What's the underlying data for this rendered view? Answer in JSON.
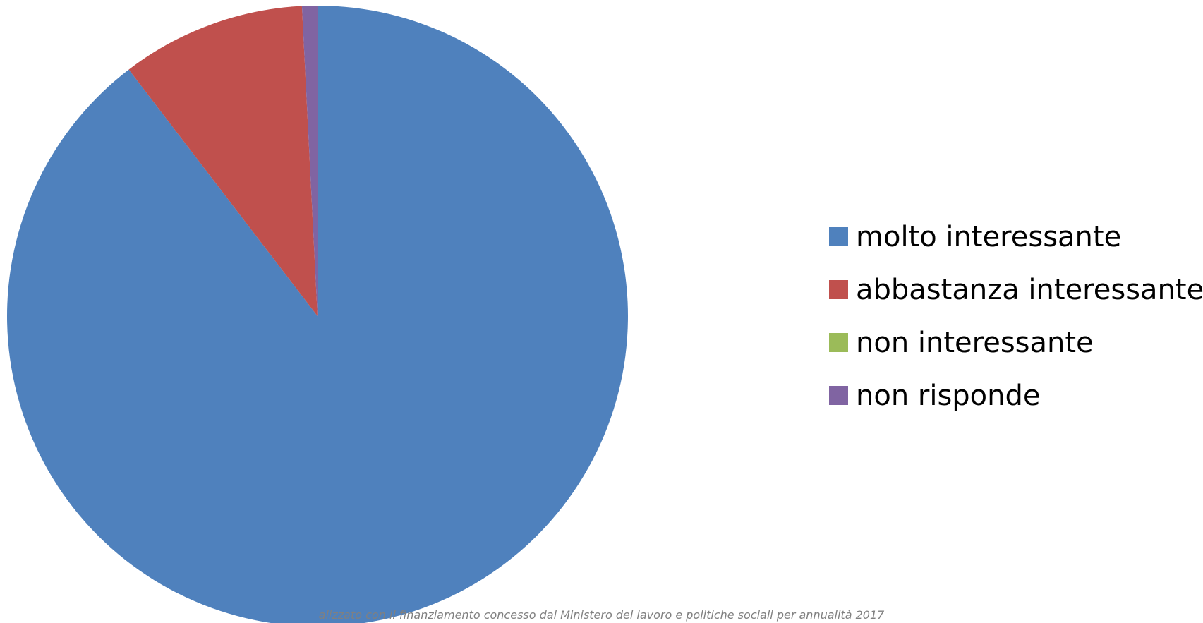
{
  "chart_data": {
    "type": "pie",
    "categories": [
      "molto interessante",
      "abbastanza interessante",
      "non interessante",
      "non risponde"
    ],
    "values": [
      89.6,
      9.6,
      0,
      0.8
    ],
    "colors": [
      "#4F81BD",
      "#C0504D",
      "#9BBB59",
      "#8064A2"
    ],
    "start_angle": "12 o'clock",
    "direction": "clockwise",
    "legend_position": "right"
  },
  "footer": {
    "text": "alizzato con il finanziamento concesso dal Ministero del lavoro e politiche sociali per annualità 2017"
  }
}
